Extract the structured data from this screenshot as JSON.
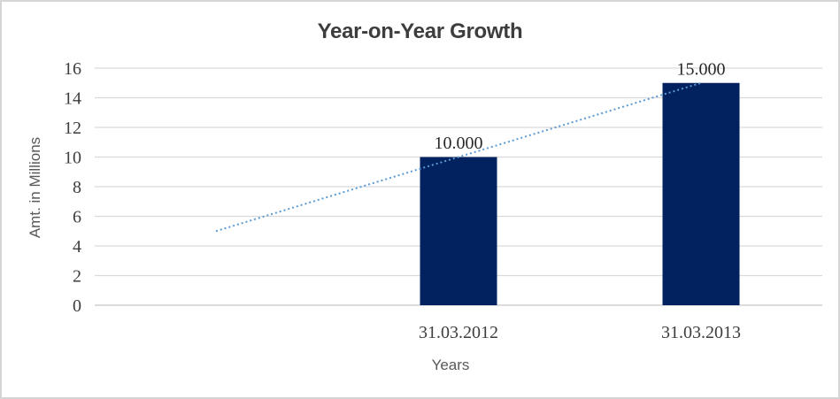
{
  "chart_data": {
    "type": "bar",
    "title": "Year-on-Year Growth",
    "xlabel": "Years",
    "ylabel": "Amt. in Millions",
    "ylim": [
      0,
      16
    ],
    "yticks": [
      0,
      2,
      4,
      6,
      8,
      10,
      12,
      14,
      16
    ],
    "categories": [
      "",
      "31.03.2012",
      "31.03.2013"
    ],
    "series": [
      {
        "type": "bar",
        "values": [
          null,
          10,
          15
        ],
        "data_labels": [
          null,
          "10.000",
          "15.000"
        ],
        "color": "#02215f"
      }
    ],
    "trendline": {
      "style": "dotted",
      "color": "#5b9bd5",
      "points": [
        {
          "category_index": 0,
          "value": 5
        },
        {
          "category_index": 2,
          "value": 15
        }
      ]
    },
    "grid": true,
    "legend": "none",
    "colors": {
      "gridline": "#d9d9d9",
      "axis_line": "#cfcfcf",
      "title_text": "#3d3d3d",
      "tick_text": "#3d3d3d",
      "data_label_text": "#262626",
      "axis_title_text": "#595959",
      "background": "#ffffff",
      "frame_border": "#d5d5d5"
    }
  }
}
